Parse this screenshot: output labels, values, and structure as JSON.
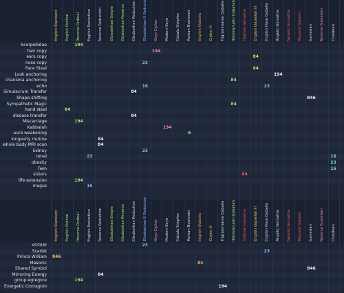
{
  "columns": [
    {
      "label": "English Standard",
      "color": "#e9c46a"
    },
    {
      "label": "English Ordinal",
      "color": "#a3e27a"
    },
    {
      "label": "Reverse Ordinal",
      "color": "#a3e27a"
    },
    {
      "label": "English Reduction",
      "color": "#cfd6e3"
    },
    {
      "label": "Reverse Reduction",
      "color": "#cfd6e3"
    },
    {
      "label": "Elizabethan Simple",
      "color": "#a3e27a"
    },
    {
      "label": "Elizabethan Reverse",
      "color": "#a3e27a"
    },
    {
      "label": "Elizabethan Reduction",
      "color": "#cfd6e3"
    },
    {
      "label": "Elizabethan R Reduction",
      "color": "#8ab4f8"
    },
    {
      "label": "Keye Cipher",
      "color": "#e58bb6"
    },
    {
      "label": "Modern Keye",
      "color": "#cfd6e3"
    },
    {
      "label": "Cabala Simplex",
      "color": "#cfd6e3"
    },
    {
      "label": "Roman Numerals",
      "color": "#cfd6e3"
    },
    {
      "label": "English Qaballa",
      "color": "#e9a55a"
    },
    {
      "label": "Cipher X",
      "color": "#e9c46a"
    },
    {
      "label": "Trigrammaton Qaballa",
      "color": "#cfd6e3"
    },
    {
      "label": "Hebrew/Latin Qaballah",
      "color": "#a3e27a"
    },
    {
      "label": "Hebrew Gematria",
      "color": "#e05a5a"
    },
    {
      "label": "English Qaballah III",
      "color": "#e9c46a"
    },
    {
      "label": "English Hose Qaballa",
      "color": "#cfd6e3"
    },
    {
      "label": "Angelic Gematria",
      "color": "#cfd6e3"
    },
    {
      "label": "Satanic Gematria",
      "color": "#e05a5a"
    },
    {
      "label": "Reverse Satanic",
      "color": "#e05a5a"
    },
    {
      "label": "Sumerian",
      "color": "#cfd6e3"
    },
    {
      "label": "Reverse Sumerian",
      "color": "#e58bb6"
    },
    {
      "label": "Chaldean",
      "color": "#cfd6e3"
    }
  ],
  "palette": {
    "green": "#a3e27a",
    "yellow": "#e9c46a",
    "blue": "#8ab4f8",
    "pink": "#e58bb6",
    "orange": "#e9a55a",
    "red": "#e05a5a",
    "teal": "#7fd6d0",
    "white": "#e9eef7"
  },
  "rows": [
    {
      "label": "Scorpidiidae",
      "hl": {
        "2": [
          "194",
          "green"
        ]
      }
    },
    {
      "label": "hair copy",
      "hl": {
        "9": [
          "194",
          "pink"
        ]
      }
    },
    {
      "label": "ears copy",
      "hl": {
        "18": [
          "84",
          "yellow"
        ]
      }
    },
    {
      "label": "nose copy",
      "hl": {
        "8": [
          "23",
          "blue"
        ]
      }
    },
    {
      "label": "Face Steal",
      "hl": {
        "18": [
          "84",
          "yellow"
        ]
      }
    },
    {
      "label": "Look anchoring",
      "hl": {
        "20": [
          "194",
          "white"
        ]
      }
    },
    {
      "label": "charisma anchoring",
      "hl": {
        "16": [
          "84",
          "green"
        ]
      }
    },
    {
      "label": "echo",
      "hl": {
        "8": [
          "16",
          "blue"
        ],
        "19": [
          "23",
          "blue"
        ]
      }
    },
    {
      "label": "Simulacrum Transfer",
      "hl": {
        "7": [
          "84",
          "white"
        ]
      }
    },
    {
      "label": "Shape-shifting",
      "hl": {
        "23": [
          "846",
          "white"
        ]
      }
    },
    {
      "label": "Sympathetic Magic",
      "hl": {
        "16": [
          "84",
          "green"
        ]
      }
    },
    {
      "label": "hand steal",
      "hl": {
        "1": [
          "84",
          "green"
        ]
      }
    },
    {
      "label": "disease transfer",
      "hl": {
        "7": [
          "84",
          "white"
        ]
      }
    },
    {
      "label": "Miscarriage",
      "hl": {
        "2": [
          "194",
          "green"
        ]
      }
    },
    {
      "label": "Kabbalah",
      "hl": {
        "10": [
          "194",
          "pink"
        ]
      }
    },
    {
      "label": "aura weakening",
      "hl": {
        "12": [
          "6",
          "green"
        ]
      }
    },
    {
      "label": "longevity routine",
      "hl": {
        "4": [
          "84",
          "white"
        ]
      }
    },
    {
      "label": "whole body MRI scan",
      "hl": {
        "4": [
          "84",
          "white"
        ]
      }
    },
    {
      "label": "kidney",
      "hl": {
        "8": [
          "23",
          "blue"
        ]
      }
    },
    {
      "label": "renal",
      "hl": {
        "3": [
          "23",
          "blue"
        ],
        "25": [
          "16",
          "teal"
        ]
      }
    },
    {
      "label": "obesity",
      "hl": {
        "25": [
          "23",
          "teal"
        ]
      }
    },
    {
      "label": "Twin",
      "hl": {
        "25": [
          "16",
          "teal"
        ]
      }
    },
    {
      "label": "sisters",
      "hl": {
        "17": [
          "84",
          "red"
        ]
      }
    },
    {
      "label": "life extension",
      "hl": {
        "2": [
          "194",
          "green"
        ]
      }
    },
    {
      "label": "magus",
      "hl": {
        "3": [
          "16",
          "blue"
        ]
      }
    },
    {
      "label": "VOGUE",
      "hl": {
        "8": [
          "23",
          "blue"
        ]
      }
    },
    {
      "label": "Scarlet",
      "hl": {
        "19": [
          "23",
          "blue"
        ]
      }
    },
    {
      "label": "Prince William",
      "hl": {
        "0": [
          "846",
          "yellow"
        ]
      }
    },
    {
      "label": "Masonic",
      "hl": {
        "13": [
          "84",
          "orange"
        ]
      }
    },
    {
      "label": "Shared Symbol",
      "hl": {
        "23": [
          "846",
          "white"
        ]
      }
    },
    {
      "label": "Mirroring Energy",
      "hl": {
        "4": [
          "84",
          "white"
        ]
      }
    },
    {
      "label": "group egregore",
      "hl": {
        "2": [
          "194",
          "green"
        ]
      }
    },
    {
      "label": "Energetic Contagion",
      "hl": {
        "15": [
          "194",
          "white"
        ]
      }
    }
  ]
}
